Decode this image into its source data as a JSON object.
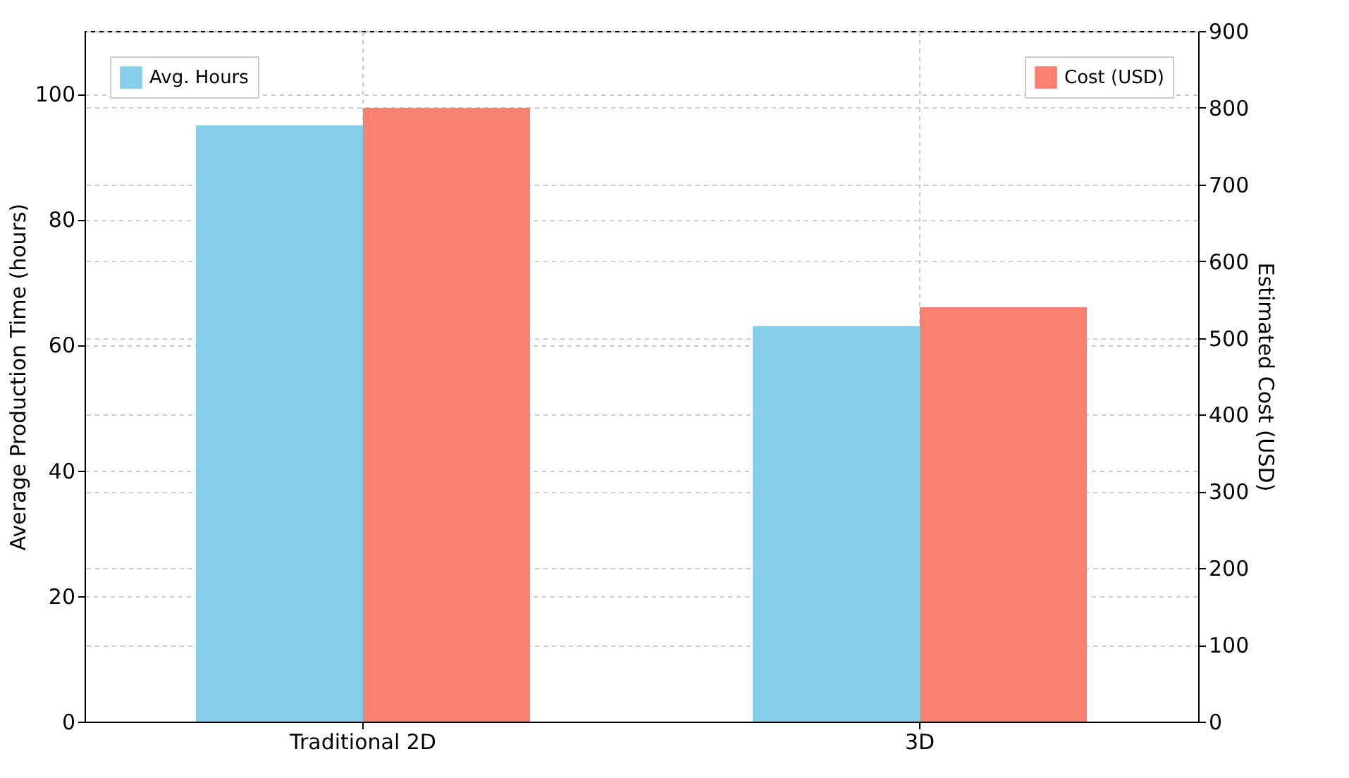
{
  "chart_data": {
    "type": "bar",
    "categories": [
      "Traditional 2D",
      "3D"
    ],
    "ylabel": "Average Production Time (hours)",
    "y2label": "Estimated Cost (USD)",
    "series": [
      {
        "name": "Avg. Hours",
        "color": "#87ceeb",
        "values": [
          95,
          63
        ]
      },
      {
        "name": "Cost (USD)",
        "color": "#fa8072",
        "values": [
          800,
          540
        ],
        "axis": "y2"
      }
    ],
    "ylim": [
      0,
      110
    ],
    "yticks": [
      0,
      20,
      40,
      60,
      80,
      100
    ],
    "y2lim": [
      0,
      900
    ],
    "y2ticks": [
      0,
      100,
      200,
      300,
      400,
      500,
      600,
      700,
      800,
      900
    ],
    "grid": true,
    "legend": "top"
  }
}
